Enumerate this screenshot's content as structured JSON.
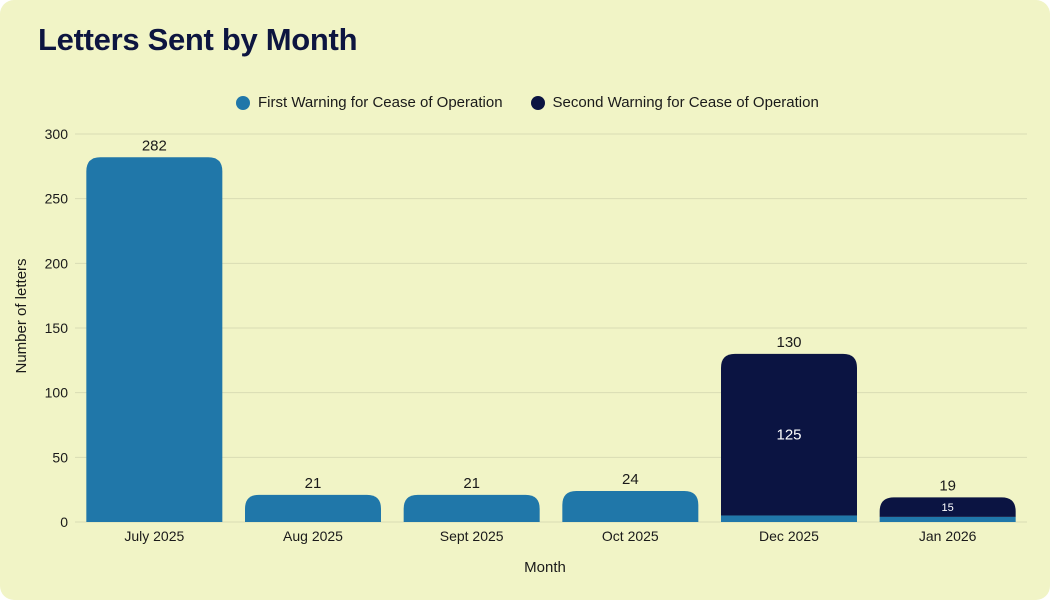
{
  "title": "Letters Sent by Month",
  "colors": {
    "background": "#f1f4c6",
    "first": "#2077a9",
    "second": "#0b1442",
    "grid": "#d9dcb4"
  },
  "chart_data": {
    "type": "bar",
    "stacked": true,
    "title": "Letters Sent by Month",
    "xlabel": "Month",
    "ylabel": "Number of letters",
    "ylim": [
      0,
      300
    ],
    "yticks": [
      0,
      50,
      100,
      150,
      200,
      250,
      300
    ],
    "categories": [
      "July 2025",
      "Aug 2025",
      "Sept 2025",
      "Oct 2025",
      "Dec 2025",
      "Jan 2026"
    ],
    "series": [
      {
        "name": "First Warning for Cease of Operation",
        "values": [
          282,
          21,
          21,
          24,
          5,
          4
        ]
      },
      {
        "name": "Second Warning for Cease of Operation",
        "values": [
          0,
          0,
          0,
          0,
          125,
          15
        ]
      }
    ],
    "totals": [
      282,
      21,
      21,
      24,
      130,
      19
    ],
    "legend_position": "top-center",
    "grid": true
  }
}
